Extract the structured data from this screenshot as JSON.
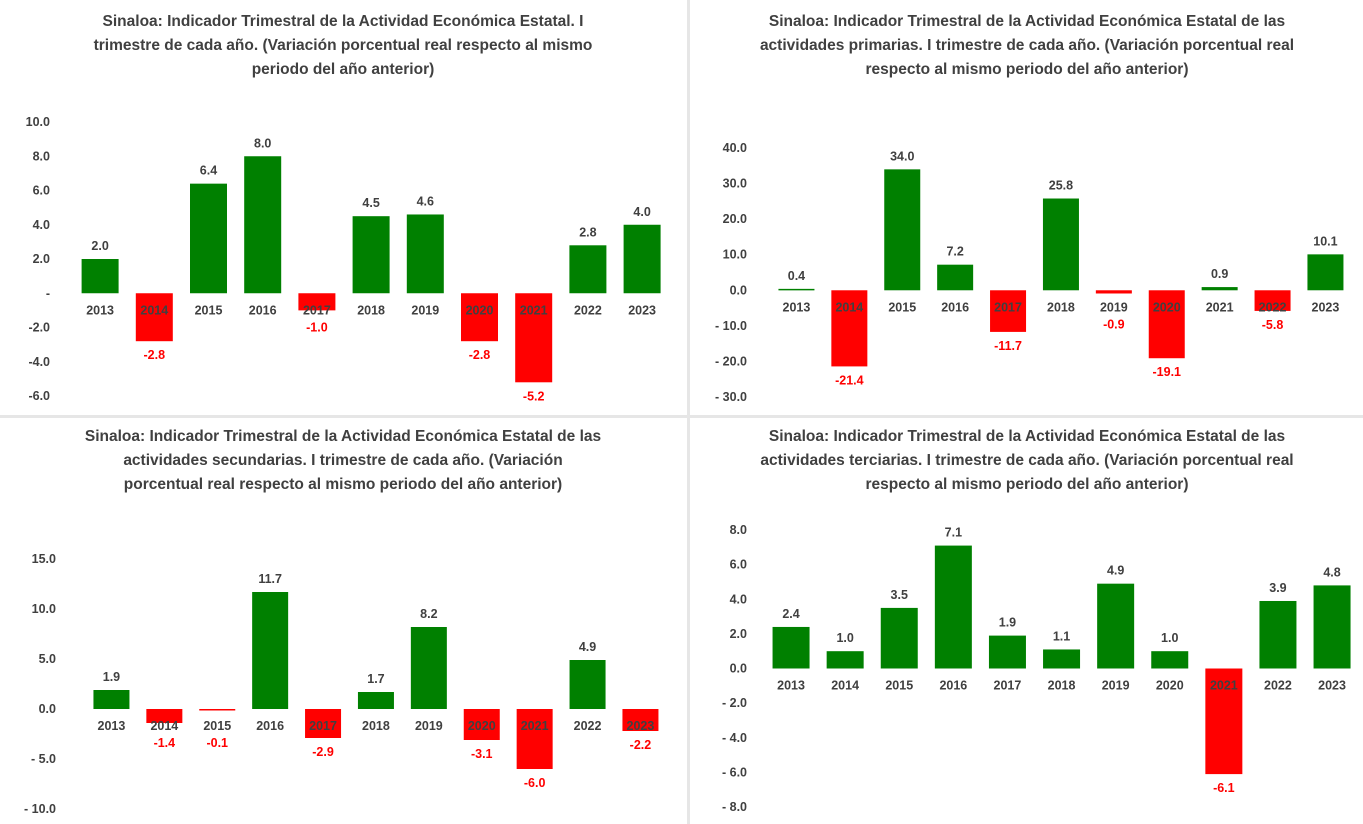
{
  "colors": {
    "positive": "#008000",
    "negative": "#ff0000",
    "axis_text": "#404040",
    "negative_label": "#ff0000"
  },
  "chart_data": [
    {
      "type": "bar",
      "title": "Sinaloa: Indicador Trimestral de la Actividad Económica Estatal. I trimestre de cada año. (Variación porcentual real respecto al mismo periodo del año anterior)",
      "categories": [
        "2013",
        "2014",
        "2015",
        "2016",
        "2017",
        "2018",
        "2019",
        "2020",
        "2021",
        "2022",
        "2023"
      ],
      "values": [
        2.0,
        -2.8,
        6.4,
        8.0,
        -1.0,
        4.5,
        4.6,
        -2.8,
        -5.2,
        2.8,
        4.0
      ],
      "value_labels": [
        "2.0",
        "-2.8",
        "6.4",
        "8.0",
        "-1.0",
        "4.5",
        "4.6",
        "-2.8",
        "-5.2",
        "2.8",
        "4.0"
      ],
      "ylim": [
        -6,
        10
      ],
      "ytick_values": [
        10,
        8,
        6,
        4,
        2,
        0,
        -2,
        -4,
        -6
      ],
      "ytick_labels": [
        "10.0",
        "8.0",
        "6.0",
        "4.0",
        "2.0",
        "-",
        "-2.0",
        "-4.0",
        "-6.0"
      ],
      "xlabel": "",
      "ylabel": "",
      "grid": false,
      "legend": "none"
    },
    {
      "type": "bar",
      "title": "Sinaloa: Indicador Trimestral de la Actividad Económica Estatal de las actividades primarias. I trimestre de cada año. (Variación porcentual real respecto al mismo periodo del año anterior)",
      "categories": [
        "2013",
        "2014",
        "2015",
        "2016",
        "2017",
        "2018",
        "2019",
        "2020",
        "2021",
        "2022",
        "2023"
      ],
      "values": [
        0.4,
        -21.4,
        34.0,
        7.2,
        -11.7,
        25.8,
        -0.9,
        -19.1,
        0.9,
        -5.8,
        10.1
      ],
      "value_labels": [
        "0.4",
        "-21.4",
        "34.0",
        "7.2",
        "-11.7",
        "25.8",
        "-0.9",
        "-19.1",
        "0.9",
        "-5.8",
        "10.1"
      ],
      "ylim": [
        -30,
        40
      ],
      "ytick_values": [
        40,
        30,
        20,
        10,
        0,
        -10,
        -20,
        -30
      ],
      "ytick_labels": [
        "40.0",
        "30.0",
        "20.0",
        "10.0",
        "0.0",
        "-    10.0",
        "-    20.0",
        "-    30.0"
      ],
      "xlabel": "",
      "ylabel": "",
      "grid": false,
      "legend": "none"
    },
    {
      "type": "bar",
      "title": "Sinaloa: Indicador Trimestral de la Actividad Económica Estatal de las actividades secundarias. I trimestre de cada año. (Variación porcentual real respecto al mismo periodo del año anterior)",
      "categories": [
        "2013",
        "2014",
        "2015",
        "2016",
        "2017",
        "2018",
        "2019",
        "2020",
        "2021",
        "2022",
        "2023"
      ],
      "values": [
        1.9,
        -1.4,
        -0.1,
        11.7,
        -2.9,
        1.7,
        8.2,
        -3.1,
        -6.0,
        4.9,
        -2.2
      ],
      "value_labels": [
        "1.9",
        "-1.4",
        "-0.1",
        "11.7",
        "-2.9",
        "1.7",
        "8.2",
        "-3.1",
        "-6.0",
        "4.9",
        "-2.2"
      ],
      "ylim": [
        -10,
        15
      ],
      "ytick_values": [
        15,
        10,
        5,
        0,
        -5,
        -10
      ],
      "ytick_labels": [
        "15.0",
        "10.0",
        "5.0",
        "0.0",
        "-    5.0",
        "-    10.0"
      ],
      "xlabel": "",
      "ylabel": "",
      "grid": false,
      "legend": "none"
    },
    {
      "type": "bar",
      "title": "Sinaloa: Indicador Trimestral de la Actividad Económica Estatal de las actividades terciarias. I trimestre de cada año. (Variación porcentual real respecto al mismo periodo del año anterior)",
      "categories": [
        "2013",
        "2014",
        "2015",
        "2016",
        "2017",
        "2018",
        "2019",
        "2020",
        "2021",
        "2022",
        "2023"
      ],
      "values": [
        2.4,
        1.0,
        3.5,
        7.1,
        1.9,
        1.1,
        4.9,
        1.0,
        -6.1,
        3.9,
        4.8
      ],
      "value_labels": [
        "2.4",
        "1.0",
        "3.5",
        "7.1",
        "1.9",
        "1.1",
        "4.9",
        "1.0",
        "-6.1",
        "3.9",
        "4.8"
      ],
      "ylim": [
        -8,
        8
      ],
      "ytick_values": [
        8,
        6,
        4,
        2,
        0,
        -2,
        -4,
        -6,
        -8
      ],
      "ytick_labels": [
        "8.0",
        "6.0",
        "4.0",
        "2.0",
        "0.0",
        "-    2.0",
        "-    4.0",
        "-    6.0",
        "-    8.0"
      ],
      "xlabel": "",
      "ylabel": "",
      "grid": false,
      "legend": "none"
    }
  ]
}
